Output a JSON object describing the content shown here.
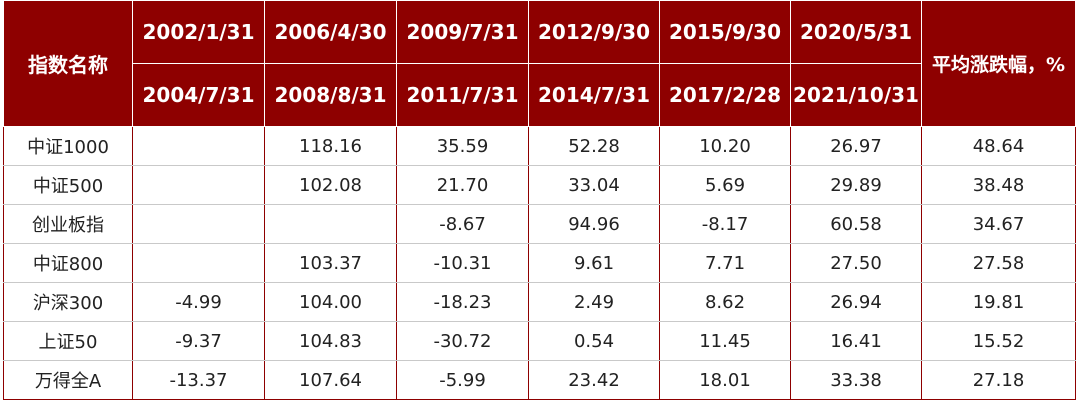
{
  "header": {
    "name_col": "指数名称",
    "avg_col": "平均涨跌幅，%",
    "periods": [
      {
        "start": "2002/1/31",
        "end": "2004/7/31"
      },
      {
        "start": "2006/4/30",
        "end": "2008/8/31"
      },
      {
        "start": "2009/7/31",
        "end": "2011/7/31"
      },
      {
        "start": "2012/9/30",
        "end": "2014/7/31"
      },
      {
        "start": "2015/9/30",
        "end": "2017/2/28"
      },
      {
        "start": "2020/5/31",
        "end": "2021/10/31"
      }
    ]
  },
  "rows": [
    {
      "name": "中证1000",
      "values": [
        "",
        "118.16",
        "35.59",
        "52.28",
        "10.20",
        "26.97"
      ],
      "avg": "48.64"
    },
    {
      "name": "中证500",
      "values": [
        "",
        "102.08",
        "21.70",
        "33.04",
        "5.69",
        "29.89"
      ],
      "avg": "38.48"
    },
    {
      "name": "创业板指",
      "values": [
        "",
        "",
        "-8.67",
        "94.96",
        "-8.17",
        "60.58"
      ],
      "avg": "34.67"
    },
    {
      "name": "中证800",
      "values": [
        "",
        "103.37",
        "-10.31",
        "9.61",
        "7.71",
        "27.50"
      ],
      "avg": "27.58"
    },
    {
      "name": "沪深300",
      "values": [
        "-4.99",
        "104.00",
        "-18.23",
        "2.49",
        "8.62",
        "26.94"
      ],
      "avg": "19.81"
    },
    {
      "name": "上证50",
      "values": [
        "-9.37",
        "104.83",
        "-30.72",
        "0.54",
        "11.45",
        "16.41"
      ],
      "avg": "15.52"
    },
    {
      "name": "万得全A",
      "values": [
        "-13.37",
        "107.64",
        "-5.99",
        "23.42",
        "18.01",
        "33.38"
      ],
      "avg": "27.18"
    }
  ]
}
